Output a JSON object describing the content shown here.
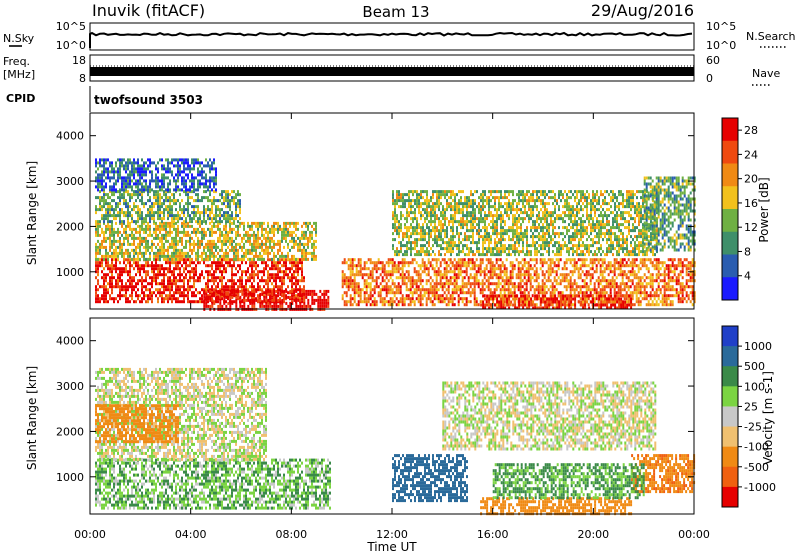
{
  "header": {
    "station": "Inuvik (fitACF)",
    "beam": "Beam 13",
    "date": "29/Aug/2016"
  },
  "info_panels": {
    "nsky_label": "N.Sky",
    "nsky_ticks": [
      "10^5",
      "10^0"
    ],
    "nsearch_label": "N.Search",
    "nsearch_ticks": [
      "10^5",
      "10^0"
    ],
    "freq_label_line1": "Freq.",
    "freq_label_line2": "[MHz]",
    "freq_ticks": [
      "18",
      "8"
    ],
    "nave_label": "Nave",
    "nave_ticks": [
      "60",
      "0"
    ],
    "cpid_label": "CPID",
    "cpid_value": "twofsound 3503"
  },
  "chart_data": [
    {
      "type": "heatmap",
      "panel": "power",
      "ylabel": "Slant Range [km]",
      "xlabel": "",
      "x_tick_labels": [
        "00:00",
        "04:00",
        "08:00",
        "12:00",
        "16:00",
        "20:00",
        "00:00"
      ],
      "y_ticks": [
        1000,
        2000,
        3000,
        4000
      ],
      "xlim_hours": [
        0,
        24
      ],
      "ylim": [
        180,
        4500
      ],
      "colorbar_label": "Power [dB]",
      "colorbar_ticks": [
        4,
        8,
        12,
        16,
        20,
        24,
        28
      ],
      "colorbar_range": [
        0,
        30
      ],
      "colors": [
        "#1a1aff",
        "#2a5db0",
        "#3f8f6a",
        "#6fb043",
        "#f2c11c",
        "#f08a14",
        "#ef4a10",
        "#e60000"
      ],
      "regions": [
        {
          "t": [
            0.2,
            8.5
          ],
          "r": [
            350,
            1300
          ],
          "v": 27
        },
        {
          "t": [
            4.5,
            9.5
          ],
          "r": [
            180,
            600
          ],
          "v": 29
        },
        {
          "t": [
            0.2,
            9.0
          ],
          "r": [
            1300,
            2100
          ],
          "v": 16
        },
        {
          "t": [
            0.2,
            6.0
          ],
          "r": [
            2100,
            2800
          ],
          "v": 12
        },
        {
          "t": [
            0.2,
            5.0
          ],
          "r": [
            2800,
            3500
          ],
          "v": 6
        },
        {
          "t": [
            10.0,
            24.0
          ],
          "r": [
            300,
            1300
          ],
          "v": 22
        },
        {
          "t": [
            15.5,
            21.5
          ],
          "r": [
            180,
            500
          ],
          "v": 27
        },
        {
          "t": [
            12.0,
            22.5
          ],
          "r": [
            1400,
            2800
          ],
          "v": 14
        },
        {
          "t": [
            22.0,
            24.0
          ],
          "r": [
            1500,
            3100
          ],
          "v": 11
        }
      ]
    },
    {
      "type": "heatmap",
      "panel": "velocity",
      "ylabel": "Slant Range [km]",
      "xlabel": "Time UT",
      "x_tick_labels": [
        "00:00",
        "04:00",
        "08:00",
        "12:00",
        "16:00",
        "20:00",
        "00:00"
      ],
      "y_ticks": [
        1000,
        2000,
        3000,
        4000
      ],
      "xlim_hours": [
        0,
        24
      ],
      "ylim": [
        180,
        4500
      ],
      "colorbar_label": "Velocity [m s-1]",
      "colorbar_ticks": [
        "1000",
        "500",
        "100",
        "25",
        "-25",
        "-100",
        "-500",
        "-1000"
      ],
      "colors": [
        "#2040c8",
        "#2a6a9a",
        "#3a8a48",
        "#7bd442",
        "#c8c8c8",
        "#f0c070",
        "#f08a14",
        "#f06010",
        "#e60000"
      ],
      "regions": [
        {
          "t": [
            0.2,
            9.5
          ],
          "r": [
            300,
            1400
          ],
          "v": 80
        },
        {
          "t": [
            0.2,
            7.0
          ],
          "r": [
            1400,
            3400
          ],
          "v": 0
        },
        {
          "t": [
            0.2,
            3.5
          ],
          "r": [
            1800,
            2600
          ],
          "v": -200
        },
        {
          "t": [
            12.0,
            15.0
          ],
          "r": [
            450,
            1500
          ],
          "v": 700
        },
        {
          "t": [
            15.5,
            21.5
          ],
          "r": [
            200,
            550
          ],
          "v": -400
        },
        {
          "t": [
            21.5,
            24.0
          ],
          "r": [
            700,
            1500
          ],
          "v": -450
        },
        {
          "t": [
            14.0,
            22.5
          ],
          "r": [
            1600,
            3100
          ],
          "v": 0
        },
        {
          "t": [
            16.0,
            22.0
          ],
          "r": [
            550,
            1300
          ],
          "v": 120
        }
      ]
    }
  ]
}
